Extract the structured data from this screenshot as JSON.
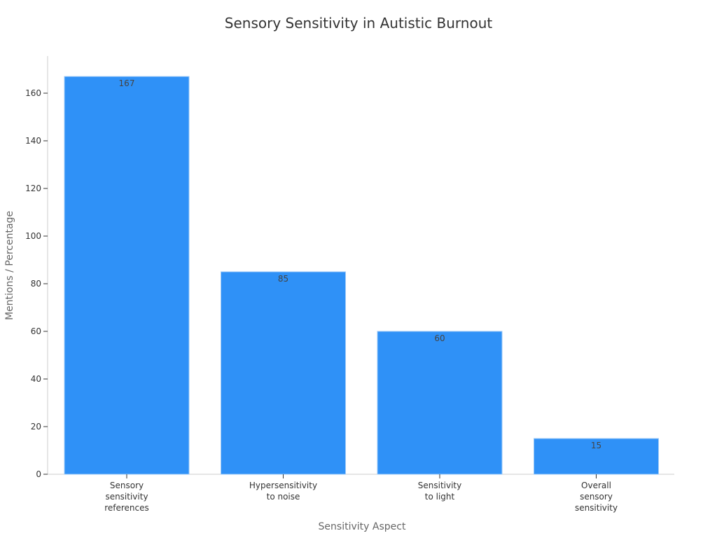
{
  "chart_data": {
    "type": "bar",
    "title": "Sensory Sensitivity in Autistic Burnout",
    "xlabel": "Sensitivity Aspect",
    "ylabel": "Mentions / Percentage",
    "categories": [
      [
        "Sensory",
        "sensitivity",
        "references"
      ],
      [
        "Hypersensitivity",
        "to noise"
      ],
      [
        "Sensitivity",
        "to light"
      ],
      [
        "Overall",
        "sensory",
        "sensitivity"
      ]
    ],
    "values": [
      167,
      85,
      60,
      15
    ],
    "data_labels": [
      "167",
      "85",
      "60",
      "15"
    ],
    "ylim": [
      0,
      175
    ],
    "yticks": [
      0,
      20,
      40,
      60,
      80,
      100,
      120,
      140,
      160
    ],
    "grid": false,
    "legend": "none",
    "colors": {
      "bar": "#2f91f7",
      "bar_edge": "#9cc9f7"
    }
  }
}
